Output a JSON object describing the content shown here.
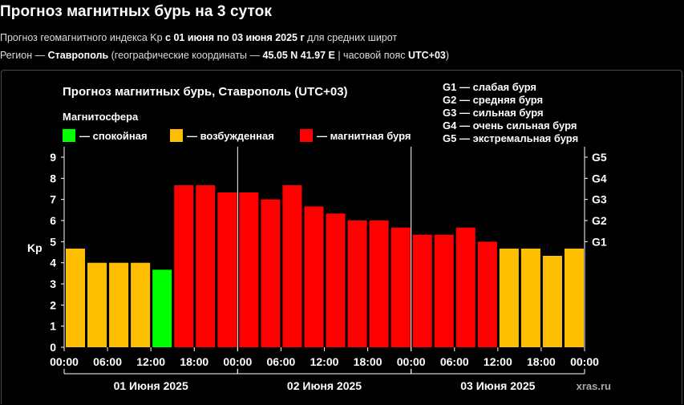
{
  "header": {
    "title": "Прогноз магнитных бурь на 3 суток",
    "line1": {
      "prefix": "Прогноз геомагнитного индекса Kp ",
      "range": "с 01 июня по 03 июня 2025 г",
      "suffix": " для средних широт"
    },
    "line2": {
      "prefix": "Регион — ",
      "city": "Ставрополь",
      "mid": " (географические координаты — ",
      "coords": "45.05 N 41.97 E",
      "tz_prefix": " | часовой пояс ",
      "tz": "UTC+03",
      "end": ")"
    }
  },
  "chart_data": {
    "type": "bar",
    "title": "Прогноз магнитных бурь, Ставрополь (UTC+03)",
    "ylabel": "Kp",
    "ylim": [
      0,
      9.5
    ],
    "yticks": [
      "0",
      "1",
      "2",
      "3",
      "4",
      "5",
      "6",
      "7",
      "8",
      "9"
    ],
    "right_ticks": [
      {
        "label": "G1",
        "kp": 5
      },
      {
        "label": "G2",
        "kp": 6
      },
      {
        "label": "G3",
        "kp": 7
      },
      {
        "label": "G4",
        "kp": 8
      },
      {
        "label": "G5",
        "kp": 9
      }
    ],
    "xticks": [
      "00:00",
      "06:00",
      "12:00",
      "18:00",
      "00:00",
      "06:00",
      "12:00",
      "18:00",
      "00:00",
      "06:00",
      "12:00",
      "18:00",
      "00:00"
    ],
    "days": [
      "01 Июня 2025",
      "02 Июня 2025",
      "03 Июня 2025"
    ],
    "values": [
      4.67,
      4.0,
      4.0,
      4.0,
      3.67,
      7.67,
      7.67,
      7.33,
      7.33,
      7.0,
      7.67,
      6.67,
      6.33,
      6.0,
      6.0,
      5.67,
      5.33,
      5.33,
      5.67,
      5.0,
      4.67,
      4.67,
      4.33,
      4.67
    ],
    "legend": {
      "title": "Магнитосфера",
      "items": [
        {
          "label": "— спокойная",
          "color": "#00ff00"
        },
        {
          "label": "— возбужденная",
          "color": "#ffbf00"
        },
        {
          "label": "— магнитная буря",
          "color": "#ff0000"
        }
      ]
    },
    "storm_scale": [
      "G1 — слабая буря",
      "G2 — средняя буря",
      "G3 — сильная буря",
      "G4 — очень сильная буря",
      "G5 — экстремальная буря"
    ],
    "watermark": "xras.ru",
    "colors": {
      "quiet": "#00ff00",
      "unsettled": "#ffbf00",
      "storm": "#ff0000"
    },
    "grid": false
  }
}
